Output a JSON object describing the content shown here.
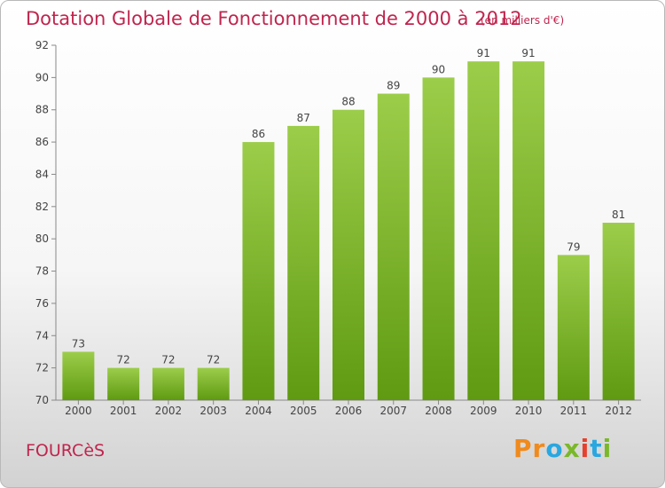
{
  "header": {
    "title": "Dotation Globale de Fonctionnement de 2000 à 2012",
    "subtitle": "(en milliers d'€)"
  },
  "footer": {
    "commune": "FOURCèS",
    "logo_text": "Proxiti"
  },
  "colors": {
    "bar_top": "#9ccd4a",
    "bar_bottom": "#5f9a12",
    "title": "#c0254e",
    "logo": [
      "#f08a1c",
      "#29a7e0",
      "#7ab829",
      "#e5412e"
    ]
  },
  "chart_data": {
    "type": "bar",
    "title": "Dotation Globale de Fonctionnement de 2000 à 2012",
    "subtitle": "(en milliers d'€)",
    "xlabel": "",
    "ylabel": "",
    "categories": [
      "2000",
      "2001",
      "2002",
      "2003",
      "2004",
      "2005",
      "2006",
      "2007",
      "2008",
      "2009",
      "2010",
      "2011",
      "2012"
    ],
    "values": [
      73,
      72,
      72,
      72,
      86,
      87,
      88,
      89,
      90,
      91,
      91,
      79,
      81
    ],
    "ylim": [
      70,
      92
    ],
    "yticks": [
      70,
      72,
      74,
      76,
      78,
      80,
      82,
      84,
      86,
      88,
      90,
      92
    ],
    "grid": false,
    "legend": "none"
  }
}
